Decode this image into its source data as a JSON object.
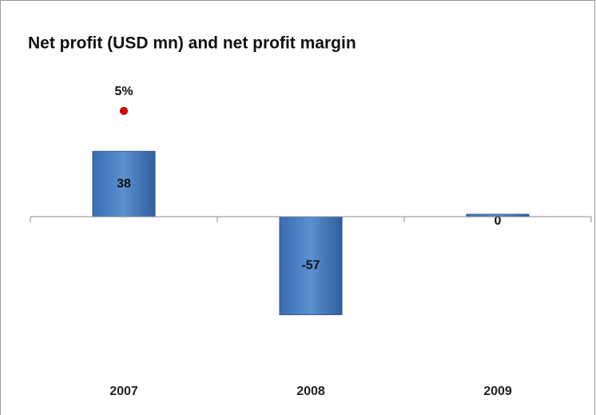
{
  "chart_data": {
    "type": "bar",
    "title": "Net profit (USD mn) and net profit margin",
    "categories": [
      "2007",
      "2008",
      "2009"
    ],
    "series": [
      {
        "name": "Net profit (USD mn)",
        "color": "#4a7fc1",
        "values": [
          38,
          -57,
          0
        ]
      },
      {
        "name": "Net profit margin",
        "type": "scatter",
        "axis": "y2",
        "color": "#e00000",
        "values": [
          5,
          null,
          null
        ],
        "value_labels": [
          "5%",
          null,
          null
        ]
      }
    ],
    "ylim": [
      -80,
      80
    ],
    "y2lim": [
      -6.5,
      6.5
    ]
  }
}
